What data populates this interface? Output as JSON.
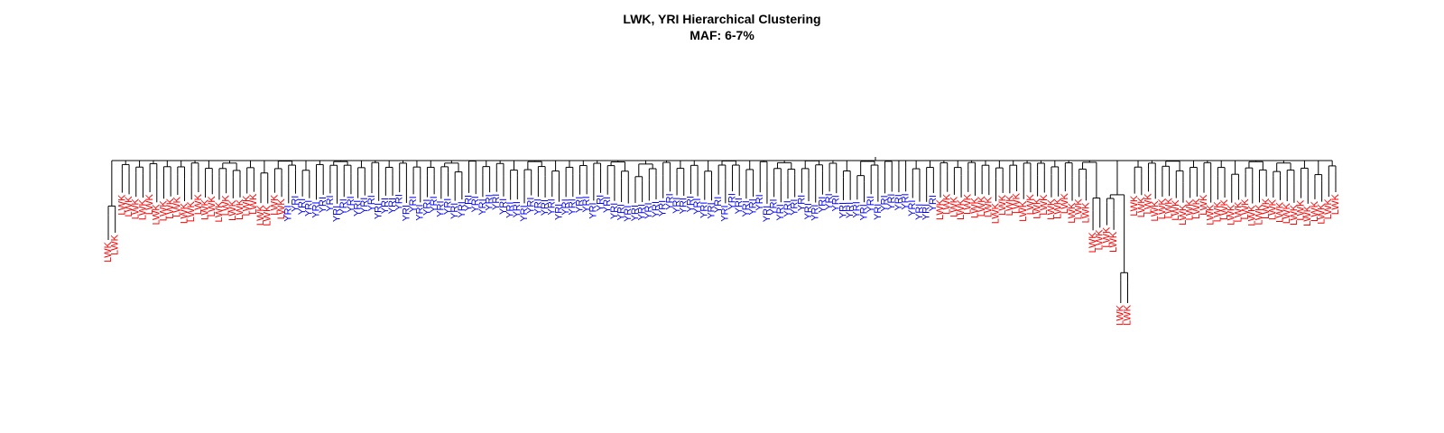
{
  "chart_data": {
    "type": "dendrogram",
    "title": "LWK, YRI Hierarchical Clustering",
    "subtitle": "MAF: 6-7%",
    "colors": {
      "LWK": "#ff0000",
      "YRI": "#0000ff",
      "branch": "#000000"
    },
    "leaf_groups": [
      {
        "label": "LWK",
        "count": 2
      },
      {
        "label": "LWK",
        "count": 20
      },
      {
        "label": "LWK",
        "count": 4
      },
      {
        "label": "YRI",
        "count": 94
      },
      {
        "label": "LWK",
        "count": 14
      },
      {
        "label": "LWK",
        "count": 8
      },
      {
        "label": "LWK",
        "count": 4
      },
      {
        "label": "LWK",
        "count": 2
      },
      {
        "label": "LWK",
        "count": 30
      }
    ]
  }
}
